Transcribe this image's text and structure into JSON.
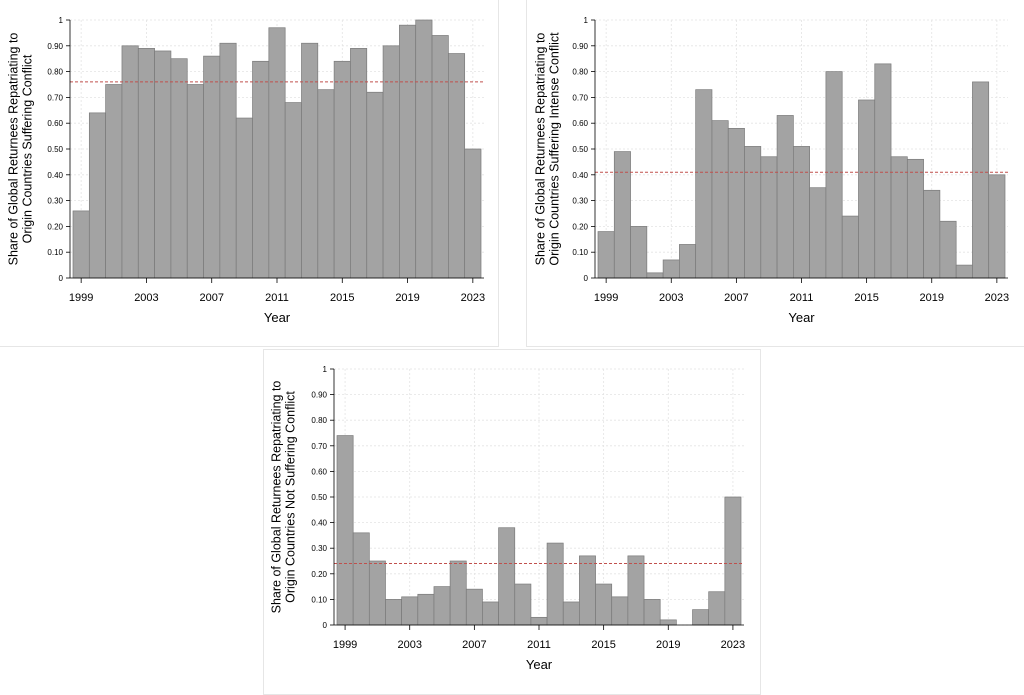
{
  "colors": {
    "bar_fill": "#a3a3a3",
    "bar_stroke": "#7a7a7a",
    "mean_line": "#c0504d",
    "grid": "#e3e3e3"
  },
  "chart_data": [
    {
      "type": "bar",
      "ylabel_line1": "Share of Global Returnees Repatriating to",
      "ylabel_line2": "Origin Countries Suffering Conflict",
      "xlabel": "Year",
      "ylim": [
        0,
        1
      ],
      "y_ticks": [
        "0",
        "0.10",
        "0.20",
        "0.30",
        "0.40",
        "0.50",
        "0.60",
        "0.70",
        "0.80",
        "0.90",
        "1"
      ],
      "x_ticks": [
        "1999",
        "2003",
        "2007",
        "2011",
        "2015",
        "2019",
        "2023"
      ],
      "grid": true,
      "mean_line": 0.76,
      "x": [
        1999,
        2000,
        2001,
        2002,
        2003,
        2004,
        2005,
        2006,
        2007,
        2008,
        2009,
        2010,
        2011,
        2012,
        2013,
        2014,
        2015,
        2016,
        2017,
        2018,
        2019,
        2020,
        2021,
        2022,
        2023
      ],
      "values": [
        0.26,
        0.64,
        0.75,
        0.9,
        0.89,
        0.88,
        0.85,
        0.75,
        0.86,
        0.91,
        0.62,
        0.84,
        0.97,
        0.68,
        0.91,
        0.73,
        0.84,
        0.89,
        0.72,
        0.9,
        0.98,
        1.0,
        0.94,
        0.87,
        0.5
      ]
    },
    {
      "type": "bar",
      "ylabel_line1": "Share of Global Returnees Repatriating to",
      "ylabel_line2": "Origin Countries Suffering Intense Conflict",
      "xlabel": "Year",
      "ylim": [
        0,
        1
      ],
      "y_ticks": [
        "0",
        "0.10",
        "0.20",
        "0.30",
        "0.40",
        "0.50",
        "0.60",
        "0.70",
        "0.80",
        "0.90",
        "1"
      ],
      "x_ticks": [
        "1999",
        "2003",
        "2007",
        "2011",
        "2015",
        "2019",
        "2023"
      ],
      "grid": true,
      "mean_line": 0.41,
      "x": [
        1999,
        2000,
        2001,
        2002,
        2003,
        2004,
        2005,
        2006,
        2007,
        2008,
        2009,
        2010,
        2011,
        2012,
        2013,
        2014,
        2015,
        2016,
        2017,
        2018,
        2019,
        2020,
        2021,
        2022,
        2023
      ],
      "values": [
        0.18,
        0.49,
        0.2,
        0.02,
        0.07,
        0.13,
        0.73,
        0.61,
        0.58,
        0.51,
        0.47,
        0.63,
        0.51,
        0.35,
        0.8,
        0.24,
        0.69,
        0.83,
        0.47,
        0.46,
        0.34,
        0.22,
        0.05,
        0.76,
        0.4
      ]
    },
    {
      "type": "bar",
      "ylabel_line1": "Share of Global Returnees Repatriating to",
      "ylabel_line2": "Origin Countries Not Suffering Conflict",
      "xlabel": "Year",
      "ylim": [
        0,
        1
      ],
      "y_ticks": [
        "0",
        "0.10",
        "0.20",
        "0.30",
        "0.40",
        "0.50",
        "0.60",
        "0.70",
        "0.80",
        "0.90",
        "1"
      ],
      "x_ticks": [
        "1999",
        "2003",
        "2007",
        "2011",
        "2015",
        "2019",
        "2023"
      ],
      "grid": true,
      "mean_line": 0.24,
      "x": [
        1999,
        2000,
        2001,
        2002,
        2003,
        2004,
        2005,
        2006,
        2007,
        2008,
        2009,
        2010,
        2011,
        2012,
        2013,
        2014,
        2015,
        2016,
        2017,
        2018,
        2019,
        2020,
        2021,
        2022,
        2023
      ],
      "values": [
        0.74,
        0.36,
        0.25,
        0.1,
        0.11,
        0.12,
        0.15,
        0.25,
        0.14,
        0.09,
        0.38,
        0.16,
        0.03,
        0.32,
        0.09,
        0.27,
        0.16,
        0.11,
        0.27,
        0.1,
        0.02,
        0.0,
        0.06,
        0.13,
        0.5
      ]
    }
  ]
}
